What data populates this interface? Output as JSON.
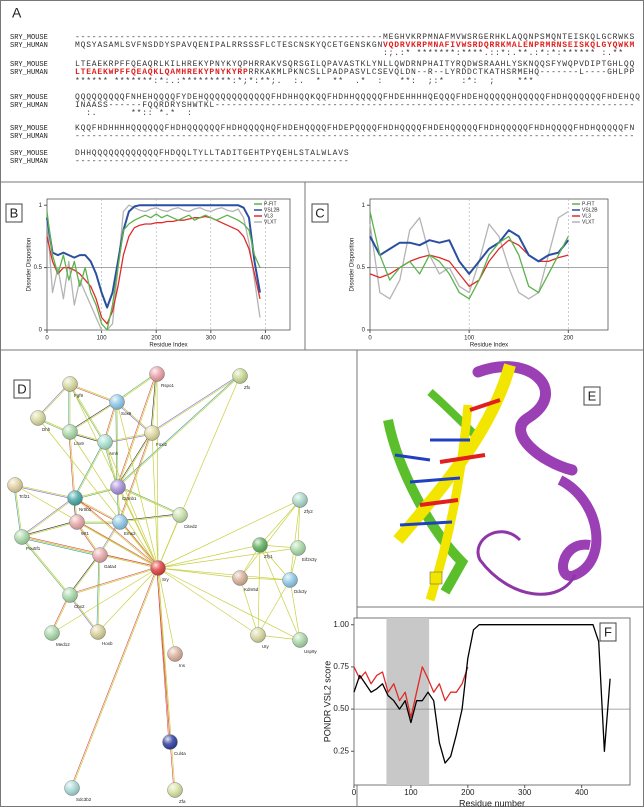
{
  "alignment": {
    "panel_label": "A",
    "lines": [
      {
        "name": "SRY_MOUSE",
        "segments": [
          {
            "text": "-------------------------------------------------------MEGHVKRPMNAFMVWSRGERHKLAQQNPSMQNTEISKQLGCRWKS"
          }
        ]
      },
      {
        "name": "SRY_HUMAN",
        "segments": [
          {
            "text": "MQSYASAMLSVFNSDDYSPAVQENIPALRRSSSFLCTESCNSKYQCETGENSKGN"
          },
          {
            "text": "VQDRVKRPMNAFIVWSRDQRRKMALENPRMRNSEISKQLGYQWKM",
            "color": "#e02020"
          }
        ]
      },
      {
        "segments": [
          {
            "text": "                                                       :;.:* *******:****.::*:.**.:*:*:****** :.**"
          }
        ]
      },
      {
        "name": "SRY_MOUSE",
        "segments": [
          {
            "text": "LTEAEKRPFFQEAQRLKILHREKYPNYKYQPHRRAKVSQRSGILQPAVASTKLYNLLQWDRNPHAITYRQDWSRAAHLYSKNQQSFYWQPVDIPTGHLQQ"
          }
        ]
      },
      {
        "name": "SRY_HUMAN",
        "segments": [
          {
            "text": "LTEAEKWPFFQEAQKLQAMHREKYPNYKYRP",
            "color": "#e02020"
          },
          {
            "text": "RRKAKMLPKNCSLLPADPASVLCSEVQLDN--R--LYRDDCTKATHSRMEHQ-------L----GHLPP"
          }
        ]
      },
      {
        "segments": [
          {
            "text": "****** *******:*:.:*********:*;*:**;.  :.  *  **  .*  :   **:  ;:*   :*:  ;    ***"
          }
        ]
      },
      {
        "name": "SRY_MOUSE",
        "segments": [
          {
            "text": "QQQQQQQQQFNHEHQQQQFYDEHQQQQQQQQQQQQFHDHHQQKQQFHDHHQQQQQFHDEHHHHQEQQQFHDEHQQQQQHQQQQQFHDHQQQQQQFHDEHQQ"
          }
        ]
      },
      {
        "name": "SRY_HUMAN",
        "segments": [
          {
            "text": "INAASS------FQQRDRYSHWTKL---------------------------------------------------------------------------"
          }
        ]
      },
      {
        "segments": [
          {
            "text": "  :.      **:: *.*  :"
          }
        ]
      },
      {
        "name": "SRY_MOUSE",
        "segments": [
          {
            "text": "KQQFHDHHHHQQQQQQFHDHQQQQQQFHDHQQQQHQFHDEHQQQQFHDEPQQQQFHDHQQQQFHDEHQQQQQFHDHQQQQQFHDHQQQQFHDHQQQQQFN"
          }
        ]
      },
      {
        "name": "SRY_HUMAN",
        "segments": [
          {
            "text": "----------------------------------------------------------------------------------------------------"
          }
        ]
      },
      {
        "name": "SRY_MOUSE",
        "segments": [
          {
            "text": "DHHQQQQQQQQQQQQFHDQQLTYLLTADITGEHTPYQEHLSTALWLAVS"
          }
        ]
      },
      {
        "name": "SRY_HUMAN",
        "segments": [
          {
            "text": "-------------------------------------------------"
          }
        ]
      }
    ]
  },
  "chart_data": [
    {
      "type": "line",
      "panel_label": "B",
      "xlabel": "Residue Index",
      "ylabel": "Disorder Disposition",
      "x": [
        0,
        10,
        20,
        30,
        40,
        50,
        60,
        70,
        80,
        90,
        100,
        110,
        120,
        130,
        140,
        150,
        160,
        170,
        180,
        190,
        200,
        210,
        220,
        230,
        240,
        250,
        260,
        270,
        280,
        290,
        300,
        310,
        320,
        330,
        340,
        350,
        360,
        370,
        380,
        390
      ],
      "series": [
        {
          "name": "P-FIT",
          "color": "#5ab34a",
          "values": [
            0.95,
            0.6,
            0.45,
            0.6,
            0.4,
            0.55,
            0.35,
            0.5,
            0.3,
            0.2,
            0.05,
            0.0,
            0.2,
            0.5,
            0.8,
            0.85,
            0.88,
            0.9,
            0.92,
            0.9,
            0.93,
            0.9,
            0.92,
            0.9,
            0.88,
            0.9,
            0.92,
            0.88,
            0.9,
            0.92,
            0.9,
            0.88,
            0.9,
            0.92,
            0.9,
            0.88,
            0.85,
            0.8,
            0.6,
            0.5
          ]
        },
        {
          "name": "VSL2B",
          "color": "#2a4fa0",
          "values": [
            0.9,
            0.62,
            0.6,
            0.62,
            0.6,
            0.58,
            0.6,
            0.6,
            0.55,
            0.45,
            0.3,
            0.18,
            0.3,
            0.55,
            0.8,
            0.95,
            0.99,
            1,
            1,
            1,
            1,
            1,
            1,
            1,
            1,
            1,
            1,
            1,
            1,
            1,
            1,
            1,
            1,
            1,
            1,
            1,
            0.98,
            0.9,
            0.55,
            0.3
          ]
        },
        {
          "name": "VL3",
          "color": "#e02a2a",
          "values": [
            0.75,
            0.55,
            0.45,
            0.5,
            0.5,
            0.48,
            0.45,
            0.4,
            0.35,
            0.25,
            0.1,
            0.05,
            0.15,
            0.35,
            0.6,
            0.75,
            0.82,
            0.84,
            0.85,
            0.85,
            0.86,
            0.86,
            0.87,
            0.87,
            0.88,
            0.88,
            0.89,
            0.9,
            0.9,
            0.91,
            0.9,
            0.88,
            0.86,
            0.84,
            0.82,
            0.8,
            0.75,
            0.65,
            0.45,
            0.25
          ]
        },
        {
          "name": "VLXT",
          "color": "#b4b4b4",
          "values": [
            0.9,
            0.3,
            0.5,
            0.25,
            0.55,
            0.2,
            0.4,
            0.3,
            0.2,
            0.1,
            0.0,
            0.0,
            0.05,
            0.5,
            0.95,
            1,
            0.98,
            0.96,
            0.95,
            0.97,
            0.98,
            0.96,
            0.95,
            0.97,
            0.98,
            0.96,
            0.95,
            0.97,
            0.98,
            0.96,
            0.95,
            0.97,
            0.98,
            0.96,
            0.95,
            0.97,
            0.9,
            0.7,
            0.4,
            0.1
          ]
        }
      ],
      "xlim": [
        0,
        445
      ],
      "xticks": [
        0,
        100,
        200,
        300,
        400
      ],
      "ylim": [
        0,
        1.05
      ],
      "yticks": [
        0,
        0.5,
        1
      ],
      "threshold": 0.5,
      "xgrid": true,
      "legend": "upper right"
    },
    {
      "type": "line",
      "panel_label": "C",
      "xlabel": "Residue Index",
      "ylabel": "Disorder Disposition",
      "x": [
        0,
        10,
        20,
        30,
        40,
        50,
        60,
        70,
        80,
        90,
        100,
        110,
        120,
        130,
        140,
        150,
        160,
        170,
        180,
        190,
        200
      ],
      "series": [
        {
          "name": "P-FIT",
          "color": "#5ab34a",
          "values": [
            0.95,
            0.6,
            0.4,
            0.5,
            0.55,
            0.45,
            0.6,
            0.55,
            0.45,
            0.3,
            0.25,
            0.4,
            0.6,
            0.7,
            0.75,
            0.6,
            0.35,
            0.3,
            0.45,
            0.6,
            0.75
          ]
        },
        {
          "name": "VSL2B",
          "color": "#2a4fa0",
          "values": [
            0.75,
            0.6,
            0.65,
            0.7,
            0.7,
            0.68,
            0.72,
            0.7,
            0.72,
            0.55,
            0.45,
            0.55,
            0.65,
            0.7,
            0.8,
            0.75,
            0.6,
            0.55,
            0.6,
            0.62,
            0.72
          ]
        },
        {
          "name": "VL3",
          "color": "#e02a2a",
          "values": [
            0.45,
            0.42,
            0.45,
            0.5,
            0.55,
            0.58,
            0.6,
            0.58,
            0.55,
            0.45,
            0.35,
            0.4,
            0.55,
            0.65,
            0.72,
            0.68,
            0.6,
            0.55,
            0.55,
            0.58,
            0.6
          ]
        },
        {
          "name": "VLXT",
          "color": "#b4b4b4",
          "values": [
            0.85,
            0.3,
            0.25,
            0.4,
            0.8,
            0.9,
            0.6,
            0.45,
            0.5,
            0.35,
            0.3,
            0.55,
            0.85,
            0.75,
            0.5,
            0.3,
            0.25,
            0.3,
            0.6,
            0.9,
            0.95
          ]
        }
      ],
      "xlim": [
        0,
        240
      ],
      "xticks": [
        0,
        100,
        200
      ],
      "ylim": [
        0,
        1.05
      ],
      "yticks": [
        0,
        0.5,
        1
      ],
      "threshold": 0.5,
      "xgrid": true,
      "legend": "upper right"
    },
    {
      "type": "line",
      "panel_label": "F",
      "xlabel": "Residue number",
      "ylabel": "PONDR VSL2 score",
      "x": [
        0,
        10,
        20,
        30,
        40,
        50,
        60,
        70,
        80,
        90,
        100,
        110,
        120,
        130,
        140,
        150,
        160,
        170,
        180,
        190,
        200,
        210,
        220,
        230,
        240,
        250,
        260,
        270,
        280,
        290,
        300,
        310,
        320,
        330,
        340,
        350,
        360,
        370,
        380,
        390,
        400,
        410,
        420,
        430,
        440,
        450
      ],
      "series": [
        {
          "color": "#000000",
          "values": [
            0.6,
            0.7,
            0.65,
            0.6,
            0.62,
            0.65,
            0.58,
            0.55,
            0.5,
            0.55,
            0.42,
            0.55,
            0.55,
            0.6,
            0.55,
            0.3,
            0.18,
            0.22,
            0.35,
            0.5,
            0.8,
            0.97,
            1,
            1,
            1,
            1,
            1,
            1,
            1,
            1,
            1,
            1,
            1,
            1,
            1,
            1,
            1,
            1,
            1,
            1,
            1,
            1,
            1,
            0.9,
            0.25,
            0.68
          ]
        },
        {
          "color": "#e02a2a",
          "values": [
            0.75,
            0.68,
            0.72,
            0.65,
            0.7,
            0.72,
            0.6,
            0.65,
            0.55,
            0.6,
            0.45,
            0.6,
            0.75,
            0.68,
            0.6,
            0.65,
            0.55,
            0.6,
            0.6,
            0.65,
            0.75,
            null,
            null,
            null,
            null,
            null,
            null,
            null,
            null,
            null,
            null,
            null,
            null,
            null,
            null,
            null,
            null,
            null,
            null,
            null,
            null,
            null,
            null,
            null,
            null,
            null
          ]
        }
      ],
      "xlim": [
        0,
        485
      ],
      "xticks": [
        0,
        100,
        200,
        300,
        400
      ],
      "ylim": [
        0.05,
        1.04
      ],
      "yticks": [
        {
          "value": 0.25,
          "label": "0.25"
        },
        {
          "value": 0.5,
          "label": "0.50"
        },
        {
          "value": 0.75,
          "label": "0.75"
        },
        {
          "value": 1,
          "label": "1.00"
        }
      ],
      "threshold": 0.5,
      "highlight_range": [
        57,
        132
      ],
      "xgrid": false
    }
  ],
  "network": {
    "panel_label": "D",
    "nodes": [
      "Rspo1",
      "Zfx",
      "Fgf9",
      "Sox9",
      "Dhh",
      "Lhx9",
      "Amh",
      "Foxl2",
      "Tcf21",
      "Nr0b1",
      "Ctnnb1",
      "Wt1",
      "Emx2",
      "Pou5f1",
      "Cited2",
      "Sry",
      "Gata4",
      "Cbx2",
      "Med12",
      "Hoxb",
      "Zfy2",
      "Zfy1",
      "Eif2s3y",
      "Kdm5d",
      "Ddx3y",
      "Uty",
      "Usp9y",
      "Ins",
      "Cul4a",
      "Sdc3b2",
      "Zfa"
    ]
  },
  "structure": {
    "panel_label": "E"
  }
}
